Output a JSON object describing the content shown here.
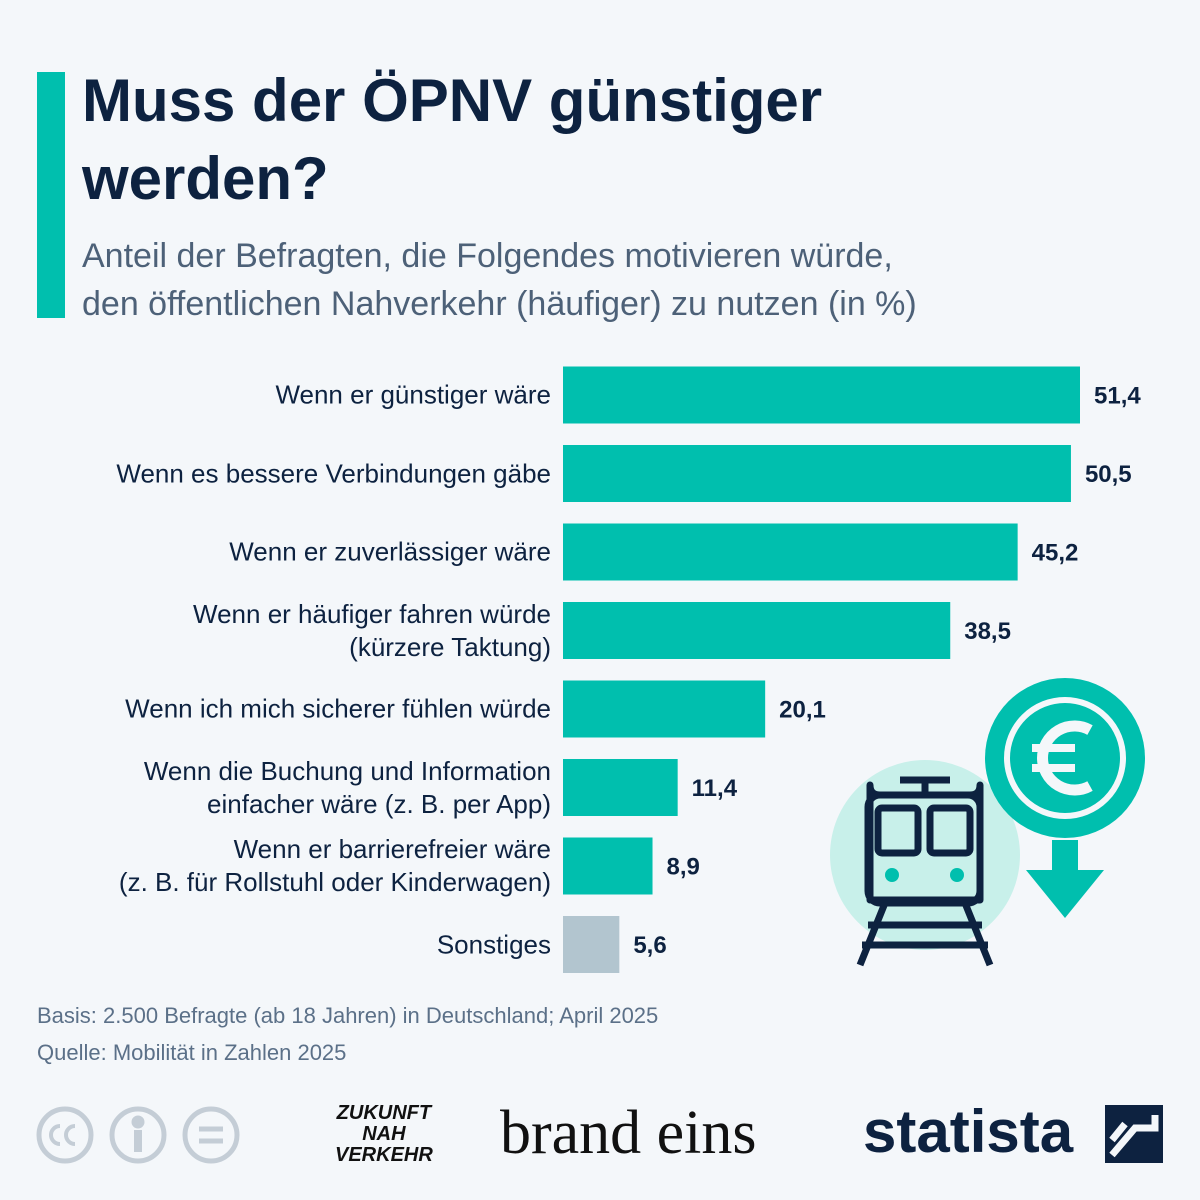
{
  "chart_data": {
    "type": "bar",
    "orientation": "horizontal",
    "title": "Muss der ÖPNV günstiger\nwerden?",
    "subtitle": "Anteil der Befragten, die Folgendes motivieren würde,\nden öffentlichen Nahverkehr (häufiger) zu nutzen (in %)",
    "categories": [
      "Wenn er günstiger wäre",
      "Wenn es bessere Verbindungen gäbe",
      "Wenn er zuverlässiger wäre",
      "Wenn er häufiger fahren würde\n(kürzere Taktung)",
      "Wenn ich mich sicherer fühlen würde",
      "Wenn die Buchung und Information\neinfacher wäre (z. B. per App)",
      "Wenn er barrierefreier wäre\n(z. B. für Rollstuhl oder Kinderwagen)",
      "Sonstiges"
    ],
    "values": [
      51.4,
      50.5,
      45.2,
      38.5,
      20.1,
      11.4,
      8.9,
      5.6
    ],
    "value_labels": [
      "51,4",
      "50,5",
      "45,2",
      "38,5",
      "20,1",
      "11,4",
      "8,9",
      "5,6"
    ],
    "colors": [
      "#00bfae",
      "#00bfae",
      "#00bfae",
      "#00bfae",
      "#00bfae",
      "#00bfae",
      "#00bfae",
      "#b2c5cf"
    ],
    "notes": [
      "Basis: 2.500 Befragte (ab 18 Jahren) in Deutschland; April 2025",
      "Quelle: Mobilität in Zahlen 2025"
    ],
    "logos": [
      "ZUKUNFT\nNAH\nVERKEHR",
      "brand eins",
      "statista"
    ]
  }
}
